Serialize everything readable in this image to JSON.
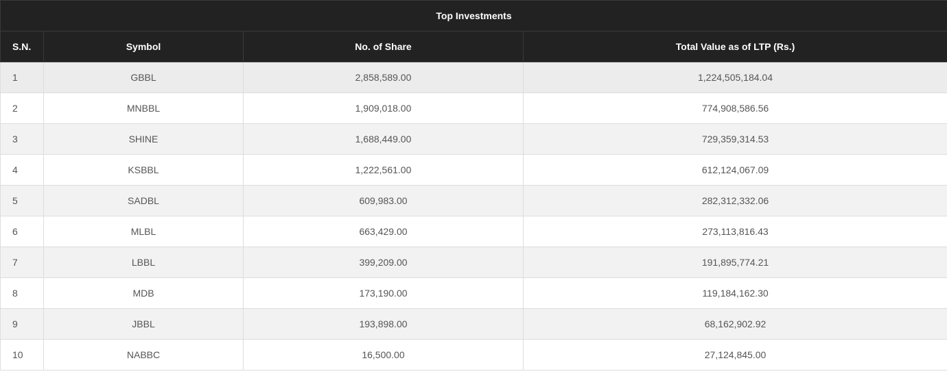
{
  "table": {
    "title": "Top Investments",
    "headers": {
      "sn": "S.N.",
      "symbol": "Symbol",
      "shares": "No. of Share",
      "value": "Total Value as of LTP (Rs.)"
    },
    "rows": [
      {
        "sn": "1",
        "symbol": "GBBL",
        "shares": "2,858,589.00",
        "value": "1,224,505,184.04"
      },
      {
        "sn": "2",
        "symbol": "MNBBL",
        "shares": "1,909,018.00",
        "value": "774,908,586.56"
      },
      {
        "sn": "3",
        "symbol": "SHINE",
        "shares": "1,688,449.00",
        "value": "729,359,314.53"
      },
      {
        "sn": "4",
        "symbol": "KSBBL",
        "shares": "1,222,561.00",
        "value": "612,124,067.09"
      },
      {
        "sn": "5",
        "symbol": "SADBL",
        "shares": "609,983.00",
        "value": "282,312,332.06"
      },
      {
        "sn": "6",
        "symbol": "MLBL",
        "shares": "663,429.00",
        "value": "273,113,816.43"
      },
      {
        "sn": "7",
        "symbol": "LBBL",
        "shares": "399,209.00",
        "value": "191,895,774.21"
      },
      {
        "sn": "8",
        "symbol": "MDB",
        "shares": "173,190.00",
        "value": "119,184,162.30"
      },
      {
        "sn": "9",
        "symbol": "JBBL",
        "shares": "193,898.00",
        "value": "68,162,902.92"
      },
      {
        "sn": "10",
        "symbol": "NABBC",
        "shares": "16,500.00",
        "value": "27,124,845.00"
      }
    ]
  }
}
